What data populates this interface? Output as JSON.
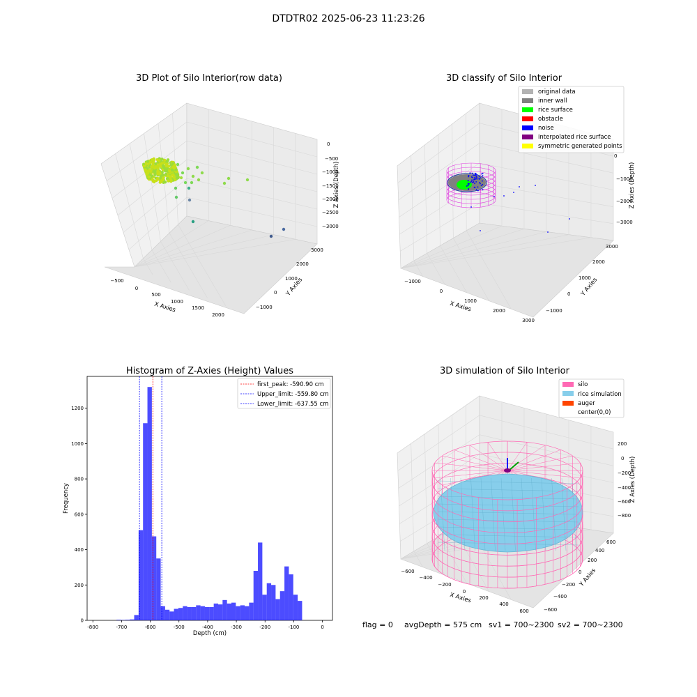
{
  "suptitle": "DTDTR02 2025-06-23 11:23:26",
  "footer": {
    "flag": "flag = 0",
    "avg_depth": "avgDepth = 575 cm",
    "sv1": "sv1 = 700~2300",
    "sv2": "sv2 = 700~2300"
  },
  "colors": {
    "rice_raw": "#c8e01a",
    "original_data": "#b3b3b3",
    "inner_wall": "#808080",
    "rice_surface": "#00ff00",
    "obstacle": "#ff0000",
    "noise": "#0000ff",
    "interpolated": "#800080",
    "symmetric": "#ffff00",
    "silo": "#ff69b4",
    "rice_simulation": "#87ceeb",
    "auger": "#ff4500",
    "histogram": "#0000ff"
  },
  "chart_data": [
    {
      "type": "scatter3d",
      "title": "3D Plot of Silo Interior(row data)",
      "xlabel": "X Axies",
      "ylabel": "Y Axies",
      "zlabel": "Z Axies (Depth)",
      "x_ticks": [
        "−500",
        "0",
        "500",
        "1000",
        "1500",
        "2000"
      ],
      "y_ticks": [
        "−1000",
        "0",
        "1000",
        "2000",
        "3000"
      ],
      "z_ticks": [
        "0",
        "−500",
        "−1000",
        "−1500",
        "−2000",
        "−2500",
        "−3000"
      ]
    },
    {
      "type": "scatter3d",
      "title": "3D classify of Silo Interior",
      "xlabel": "X Axies",
      "ylabel": "Y Axies",
      "zlabel": "Z Axies (Depth)",
      "x_ticks": [
        "−1000",
        "0",
        "1000",
        "2000",
        "3000"
      ],
      "y_ticks": [
        "−1000",
        "0",
        "1000",
        "2000",
        "3000"
      ],
      "z_ticks": [
        "0",
        "−1000",
        "−2000",
        "−3000"
      ],
      "legend": [
        "original data",
        "inner wall",
        "rice surface",
        "obstacle",
        "noise",
        "interpolated rice surface",
        "symmetric generated points"
      ],
      "legend_position": "top-right"
    },
    {
      "type": "bar",
      "title": "Histogram of Z-Axies (Height) Values",
      "xlabel": "Depth (cm)",
      "ylabel": "Frequency",
      "xlim": [
        -820,
        35
      ],
      "ylim": [
        0,
        1380
      ],
      "x_ticks": [
        -800,
        -700,
        -600,
        -500,
        -400,
        -300,
        -200,
        -100,
        0
      ],
      "y_ticks": [
        0,
        200,
        400,
        600,
        800,
        1000,
        1200
      ],
      "bin_width": 15.4,
      "bin_start": -810,
      "values": [
        0,
        0,
        0,
        0,
        0,
        0,
        3,
        2,
        3,
        5,
        30,
        510,
        1115,
        1320,
        475,
        350,
        80,
        60,
        50,
        65,
        70,
        80,
        75,
        75,
        85,
        80,
        75,
        75,
        95,
        90,
        115,
        95,
        100,
        80,
        85,
        80,
        100,
        280,
        440,
        145,
        210,
        200,
        120,
        165,
        305,
        260,
        145,
        110
      ],
      "legend_position": "top-right",
      "lines": [
        {
          "label": "first_peak: -590.90 cm",
          "x": -590.9,
          "color": "#ff0000"
        },
        {
          "label": "Upper_limit: -559.80 cm",
          "x": -559.8,
          "color": "#0000ff"
        },
        {
          "label": "Lower_limit: -637.55 cm",
          "x": -637.55,
          "color": "#0000ff"
        }
      ]
    },
    {
      "type": "surface3d",
      "title": "3D simulation of Silo Interior",
      "xlabel": "X Axies",
      "ylabel": "Y Axies",
      "zlabel": "Z Axies (Depth)",
      "x_ticks": [
        "−600",
        "−400",
        "−200",
        "0",
        "200",
        "400",
        "600"
      ],
      "y_ticks": [
        "−600",
        "−400",
        "−200",
        "0",
        "200",
        "400",
        "600"
      ],
      "z_ticks": [
        "200",
        "0",
        "−200",
        "−400",
        "−600",
        "−800"
      ],
      "legend": [
        "silo",
        "rice simulation",
        "auger",
        "center(0,0)"
      ],
      "legend_position": "top-right"
    }
  ]
}
